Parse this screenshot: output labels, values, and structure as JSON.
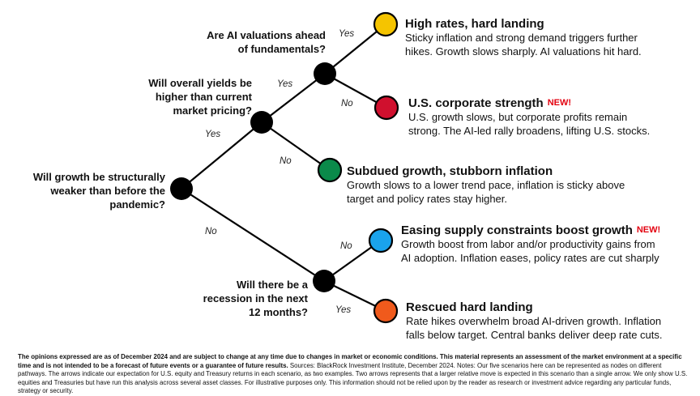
{
  "questions": {
    "q_growth": [
      "Will growth be structurally",
      "weaker than before the",
      "pandemic?"
    ],
    "q_yields": [
      "Will overall yields be",
      "higher than current",
      "market pricing?"
    ],
    "q_ai": [
      "Are AI valuations ahead",
      "of fundamentals?"
    ],
    "q_recession": [
      "Will there be a",
      "recession in the next",
      "12 months?"
    ]
  },
  "answers": {
    "yes_yields": "Yes",
    "no_growth": "No",
    "yes_ai": "Yes",
    "no_subdued": "No",
    "yes_high": "Yes",
    "no_corp": "No",
    "no_easing": "No",
    "yes_rescued": "Yes"
  },
  "outcomes": [
    {
      "title": "High rates, hard landing",
      "new": "",
      "color": "#f5c400",
      "desc": [
        "Sticky inflation and strong demand triggers further",
        "hikes. Growth slows sharply. AI valuations hit hard."
      ]
    },
    {
      "title": "U.S. corporate strength",
      "new": "NEW!",
      "color": "#d0102e",
      "desc": [
        "U.S. growth slows, but corporate profits remain",
        "strong. The AI-led rally broadens, lifting U.S. stocks."
      ]
    },
    {
      "title": "Subdued growth, stubborn inflation",
      "new": "",
      "color": "#0b8a4a",
      "desc": [
        "Growth slows to a lower trend pace, inflation is sticky above",
        "target and policy rates stay higher."
      ]
    },
    {
      "title": "Easing supply constraints boost growth",
      "new": "NEW!",
      "color": "#1aa3ec",
      "desc": [
        "Growth boost from labor and/or productivity gains from",
        "AI adoption. Inflation eases, policy rates are cut sharply"
      ]
    },
    {
      "title": "Rescued hard landing",
      "new": "",
      "color": "#f05a1c",
      "desc": [
        "Rate hikes overwhelm broad AI-driven growth. Inflation",
        "falls below target. Central banks deliver deep rate cuts."
      ]
    }
  ],
  "footnote": {
    "bold": "The opinions expressed are as of December 2024 and are subject to change at any time due to changes in market or economic conditions. This material represents an assessment of the market environment at a specific time and is not intended to be a forecast of future events or a guarantee of future results.",
    "rest": " Sources: BlackRock Investment Institute, December 2024. Notes: Our five scenarios here can be represented as nodes on different pathways. The arrows indicate our expectation for U.S. equity and Treasury returns in each scenario, as two examples. Two arrows represents that a larger relative move is expected in this scenario than a single arrow. We only show U.S. equities and Treasuries but have run this analysis across several asset classes. For illustrative purposes only. This information should not be relied upon by the reader as research or investment advice regarding any particular funds, strategy or security."
  }
}
